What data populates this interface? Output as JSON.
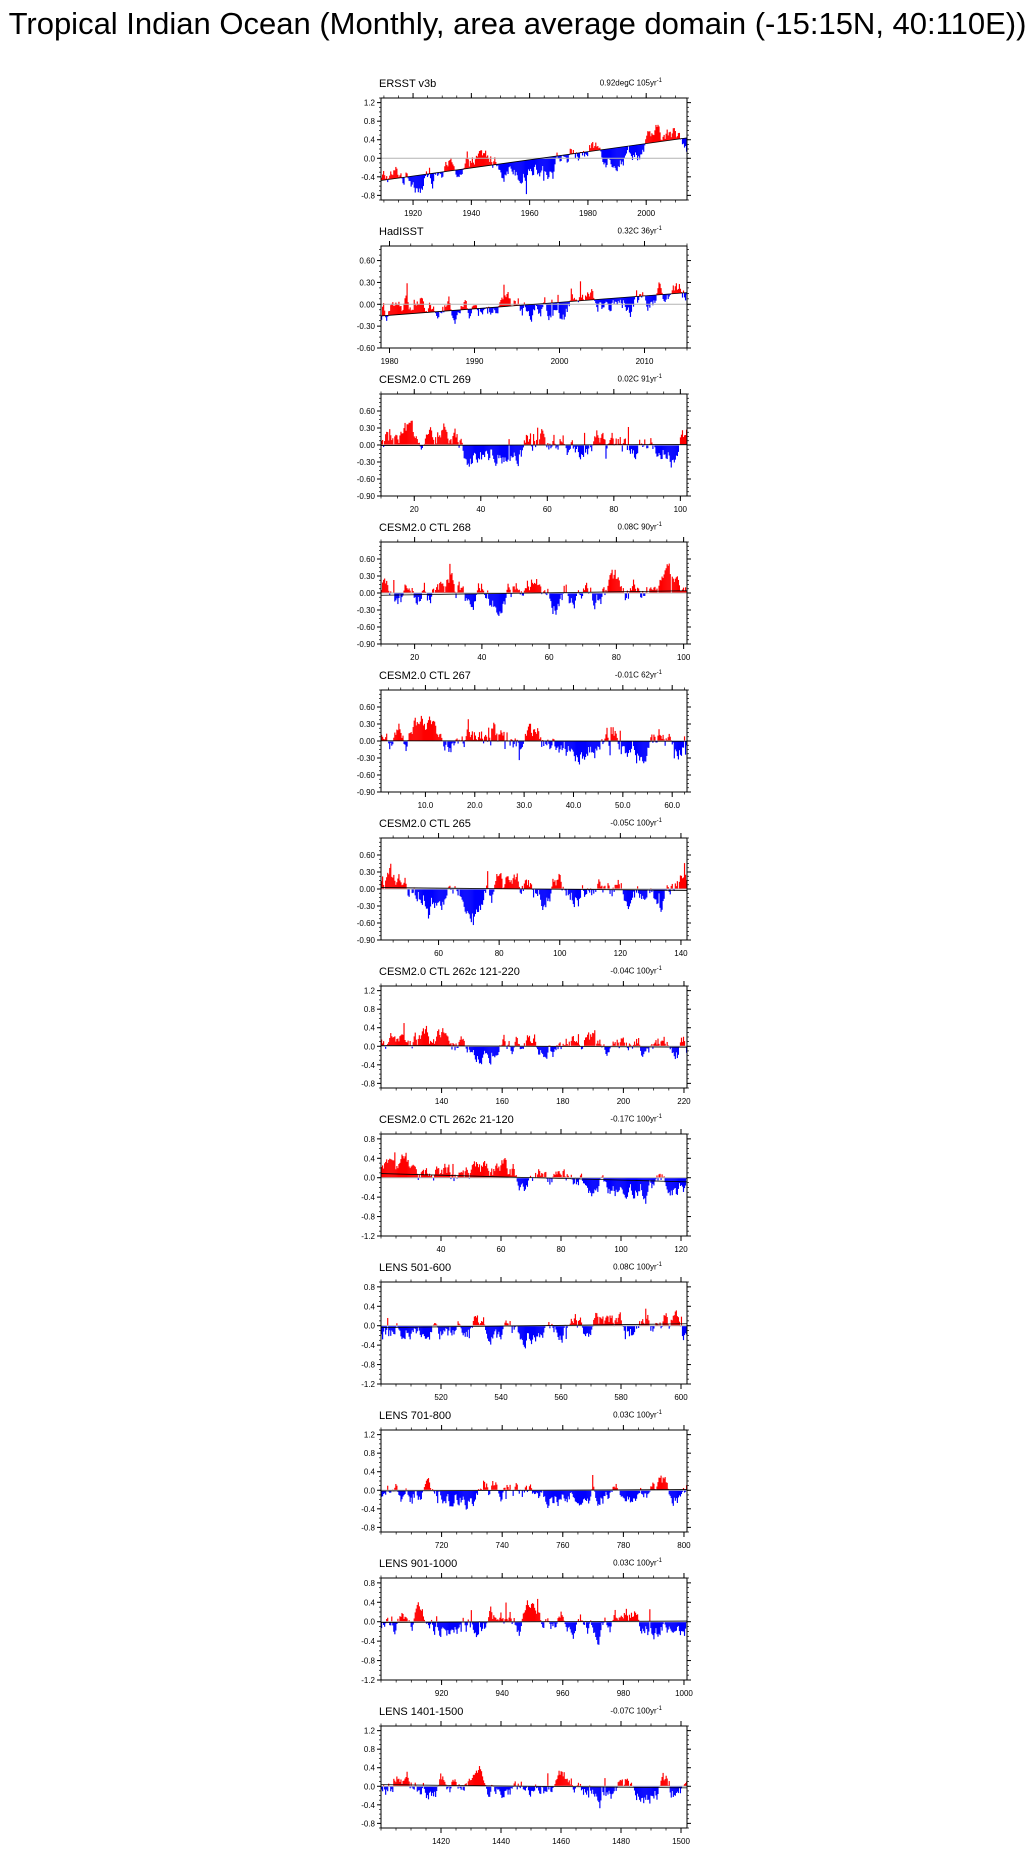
{
  "title": "Tropical Indian Ocean (Monthly, area average domain (-15:15N, 40:110E))",
  "colors": {
    "positive": "#ff0000",
    "negative": "#0000ff",
    "axis": "#000000",
    "line": "#b4b4b4"
  },
  "chart_data": [
    {
      "type": "bar",
      "label": "ERSST v3b",
      "trend": "0.92degC 105yr",
      "trend_superscript": "-1",
      "x_range": [
        1909,
        2014
      ],
      "ylim": [
        -0.9,
        1.3
      ],
      "y_ticks": [
        "1.2",
        "0.8",
        "0.4",
        "0.0",
        "-0.4",
        "-0.8"
      ],
      "y_tick_values": [
        1.2,
        0.8,
        0.4,
        0.0,
        -0.4,
        -0.8
      ],
      "x_ticks": [
        "1920",
        "1940",
        "1960",
        "1980",
        "2000"
      ],
      "x_tick_values": [
        1920,
        1940,
        1960,
        1980,
        2000
      ],
      "baseline": 0.0,
      "trend_line": [
        -0.48,
        0.44
      ]
    },
    {
      "type": "bar",
      "label": "HadISST",
      "trend": "0.32C 36yr",
      "trend_superscript": "-1",
      "x_range": [
        1979,
        2015
      ],
      "ylim": [
        -0.6,
        0.8
      ],
      "y_ticks": [
        "0.60",
        "0.30",
        "0.00",
        "-0.30",
        "-0.60"
      ],
      "y_tick_values": [
        0.6,
        0.3,
        0.0,
        -0.3,
        -0.6
      ],
      "x_ticks": [
        "1980",
        "1990",
        "2000",
        "2010"
      ],
      "x_tick_values": [
        1980,
        1990,
        2000,
        2010
      ],
      "baseline": 0.0,
      "trend_line": [
        -0.16,
        0.16
      ]
    },
    {
      "type": "bar",
      "label": "CESM2.0 CTL 269",
      "trend": "0.02C 91yr",
      "trend_superscript": "-1",
      "x_range": [
        10,
        102
      ],
      "ylim": [
        -0.9,
        0.9
      ],
      "y_ticks": [
        "0.60",
        "0.30",
        "0.00",
        "-0.30",
        "-0.60",
        "-0.90"
      ],
      "y_tick_values": [
        0.6,
        0.3,
        0.0,
        -0.3,
        -0.6,
        -0.9
      ],
      "x_ticks": [
        "20",
        "40",
        "60",
        "80",
        "100"
      ],
      "x_tick_values": [
        20,
        40,
        60,
        80,
        100
      ],
      "baseline": 0.0,
      "trend_line": [
        -0.01,
        0.01
      ]
    },
    {
      "type": "bar",
      "label": "CESM2.0 CTL 268",
      "trend": "0.08C 90yr",
      "trend_superscript": "-1",
      "x_range": [
        10,
        101
      ],
      "ylim": [
        -0.9,
        0.9
      ],
      "y_ticks": [
        "0.60",
        "0.30",
        "0.00",
        "-0.30",
        "-0.60",
        "-0.90"
      ],
      "y_tick_values": [
        0.6,
        0.3,
        0.0,
        -0.3,
        -0.6,
        -0.9
      ],
      "x_ticks": [
        "20",
        "40",
        "60",
        "80",
        "100"
      ],
      "x_tick_values": [
        20,
        40,
        60,
        80,
        100
      ],
      "baseline": 0.0,
      "trend_line": [
        -0.04,
        0.04
      ]
    },
    {
      "type": "bar",
      "label": "CESM2.0 CTL 267",
      "trend": "-0.01C 62yr",
      "trend_superscript": "-1",
      "x_range": [
        1,
        63
      ],
      "ylim": [
        -0.9,
        0.9
      ],
      "y_ticks": [
        "0.60",
        "0.30",
        "0.00",
        "-0.30",
        "-0.60",
        "-0.90"
      ],
      "y_tick_values": [
        0.6,
        0.3,
        0.0,
        -0.3,
        -0.6,
        -0.9
      ],
      "x_ticks": [
        "10.0",
        "20.0",
        "30.0",
        "40.0",
        "50.0",
        "60.0"
      ],
      "x_tick_values": [
        10,
        20,
        30,
        40,
        50,
        60
      ],
      "baseline": 0.0,
      "trend_line": [
        0.005,
        -0.005
      ]
    },
    {
      "type": "bar",
      "label": "CESM2.0 CTL 265",
      "trend": "-0.05C 100yr",
      "trend_superscript": "-1",
      "x_range": [
        41,
        142
      ],
      "ylim": [
        -0.9,
        0.9
      ],
      "y_ticks": [
        "0.60",
        "0.30",
        "0.00",
        "-0.30",
        "-0.60",
        "-0.90"
      ],
      "y_tick_values": [
        0.6,
        0.3,
        0.0,
        -0.3,
        -0.6,
        -0.9
      ],
      "x_ticks": [
        "60",
        "80",
        "100",
        "120",
        "140"
      ],
      "x_tick_values": [
        60,
        80,
        100,
        120,
        140
      ],
      "baseline": 0.0,
      "trend_line": [
        0.025,
        -0.025
      ]
    },
    {
      "type": "bar",
      "label": "CESM2.0 CTL 262c 121-220",
      "trend": "-0.04C 100yr",
      "trend_superscript": "-1",
      "x_range": [
        120,
        221
      ],
      "ylim": [
        -0.9,
        1.3
      ],
      "y_ticks": [
        "1.2",
        "0.8",
        "0.4",
        "0.0",
        "-0.4",
        "-0.8"
      ],
      "y_tick_values": [
        1.2,
        0.8,
        0.4,
        0.0,
        -0.4,
        -0.8
      ],
      "x_ticks": [
        "140",
        "160",
        "180",
        "200",
        "220"
      ],
      "x_tick_values": [
        140,
        160,
        180,
        200,
        220
      ],
      "baseline": 0.0,
      "trend_line": [
        0.02,
        -0.02
      ]
    },
    {
      "type": "bar",
      "label": "CESM2.0 CTL 262c 21-120",
      "trend": "-0.17C 100yr",
      "trend_superscript": "-1",
      "x_range": [
        20,
        122
      ],
      "ylim": [
        -1.2,
        0.9
      ],
      "y_ticks": [
        "0.8",
        "0.4",
        "0.0",
        "-0.4",
        "-0.8",
        "-1.2"
      ],
      "y_tick_values": [
        0.8,
        0.4,
        0.0,
        -0.4,
        -0.8,
        -1.2
      ],
      "x_ticks": [
        "40",
        "60",
        "80",
        "100",
        "120"
      ],
      "x_tick_values": [
        40,
        60,
        80,
        100,
        120
      ],
      "baseline": 0.0,
      "trend_line": [
        0.085,
        -0.085
      ]
    },
    {
      "type": "bar",
      "label": "LENS 501-600",
      "trend": "0.08C 100yr",
      "trend_superscript": "-1",
      "x_range": [
        500,
        602
      ],
      "ylim": [
        -1.2,
        0.9
      ],
      "y_ticks": [
        "0.8",
        "0.4",
        "0.0",
        "-0.4",
        "-0.8",
        "-1.2"
      ],
      "y_tick_values": [
        0.8,
        0.4,
        0.0,
        -0.4,
        -0.8,
        -1.2
      ],
      "x_ticks": [
        "520",
        "540",
        "560",
        "580",
        "600"
      ],
      "x_tick_values": [
        520,
        540,
        560,
        580,
        600
      ],
      "baseline": 0.0,
      "trend_line": [
        -0.04,
        0.04
      ]
    },
    {
      "type": "bar",
      "label": "LENS 701-800",
      "trend": "0.03C 100yr",
      "trend_superscript": "-1",
      "x_range": [
        700,
        801
      ],
      "ylim": [
        -0.9,
        1.3
      ],
      "y_ticks": [
        "1.2",
        "0.8",
        "0.4",
        "0.0",
        "-0.4",
        "-0.8"
      ],
      "y_tick_values": [
        1.2,
        0.8,
        0.4,
        0.0,
        -0.4,
        -0.8
      ],
      "x_ticks": [
        "720",
        "740",
        "760",
        "780",
        "800"
      ],
      "x_tick_values": [
        720,
        740,
        760,
        780,
        800
      ],
      "baseline": 0.0,
      "trend_line": [
        -0.015,
        0.015
      ]
    },
    {
      "type": "bar",
      "label": "LENS 901-1000",
      "trend": "0.03C 100yr",
      "trend_superscript": "-1",
      "x_range": [
        900,
        1001
      ],
      "ylim": [
        -1.2,
        0.9
      ],
      "y_ticks": [
        "0.8",
        "0.4",
        "0.0",
        "-0.4",
        "-0.8",
        "-1.2"
      ],
      "y_tick_values": [
        0.8,
        0.4,
        0.0,
        -0.4,
        -0.8,
        -1.2
      ],
      "x_ticks": [
        "920",
        "940",
        "960",
        "980",
        "1000"
      ],
      "x_tick_values": [
        920,
        940,
        960,
        980,
        1000
      ],
      "baseline": 0.0,
      "trend_line": [
        -0.015,
        0.015
      ]
    },
    {
      "type": "bar",
      "label": "LENS 1401-1500",
      "trend": "-0.07C 100yr",
      "trend_superscript": "-1",
      "x_range": [
        1400,
        1502
      ],
      "ylim": [
        -0.9,
        1.3
      ],
      "y_ticks": [
        "1.2",
        "0.8",
        "0.4",
        "0.0",
        "-0.4",
        "-0.8"
      ],
      "y_tick_values": [
        1.2,
        0.8,
        0.4,
        0.0,
        -0.4,
        -0.8
      ],
      "x_ticks": [
        "1420",
        "1440",
        "1460",
        "1480",
        "1500"
      ],
      "x_tick_values": [
        1420,
        1440,
        1460,
        1480,
        1500
      ],
      "baseline": 0.0,
      "trend_line": [
        0.035,
        -0.035
      ]
    }
  ]
}
